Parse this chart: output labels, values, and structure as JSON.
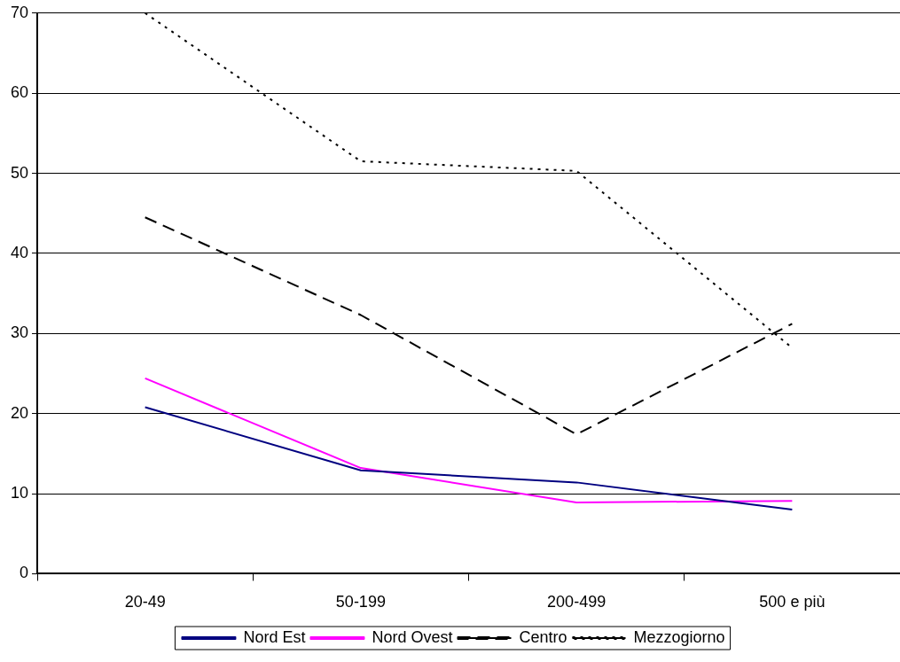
{
  "chart_data": {
    "type": "line",
    "categories": [
      "20-49",
      "50-199",
      "200-499",
      "500 e più"
    ],
    "series": [
      {
        "name": "Nord Est",
        "color": "#000080",
        "values": [
          20.8,
          12.9,
          11.4,
          8.0
        ],
        "line_style": "solid"
      },
      {
        "name": "Nord Ovest",
        "color": "#ff00ff",
        "values": [
          24.4,
          13.2,
          8.9,
          9.1
        ],
        "line_style": "solid"
      },
      {
        "name": "Centro",
        "color": "#000000",
        "values": [
          44.5,
          32.3,
          17.4,
          31.2
        ],
        "line_style": "dashed"
      },
      {
        "name": "Mezzogiorno",
        "color": "#000000",
        "values": [
          70,
          51.5,
          50.3,
          28.2
        ],
        "line_style": "dotted"
      }
    ],
    "ylim": [
      0,
      70
    ],
    "yticks": [
      0,
      10,
      20,
      30,
      40,
      50,
      60,
      70
    ],
    "grid": "y",
    "legend": "bottom",
    "marker": "none"
  }
}
